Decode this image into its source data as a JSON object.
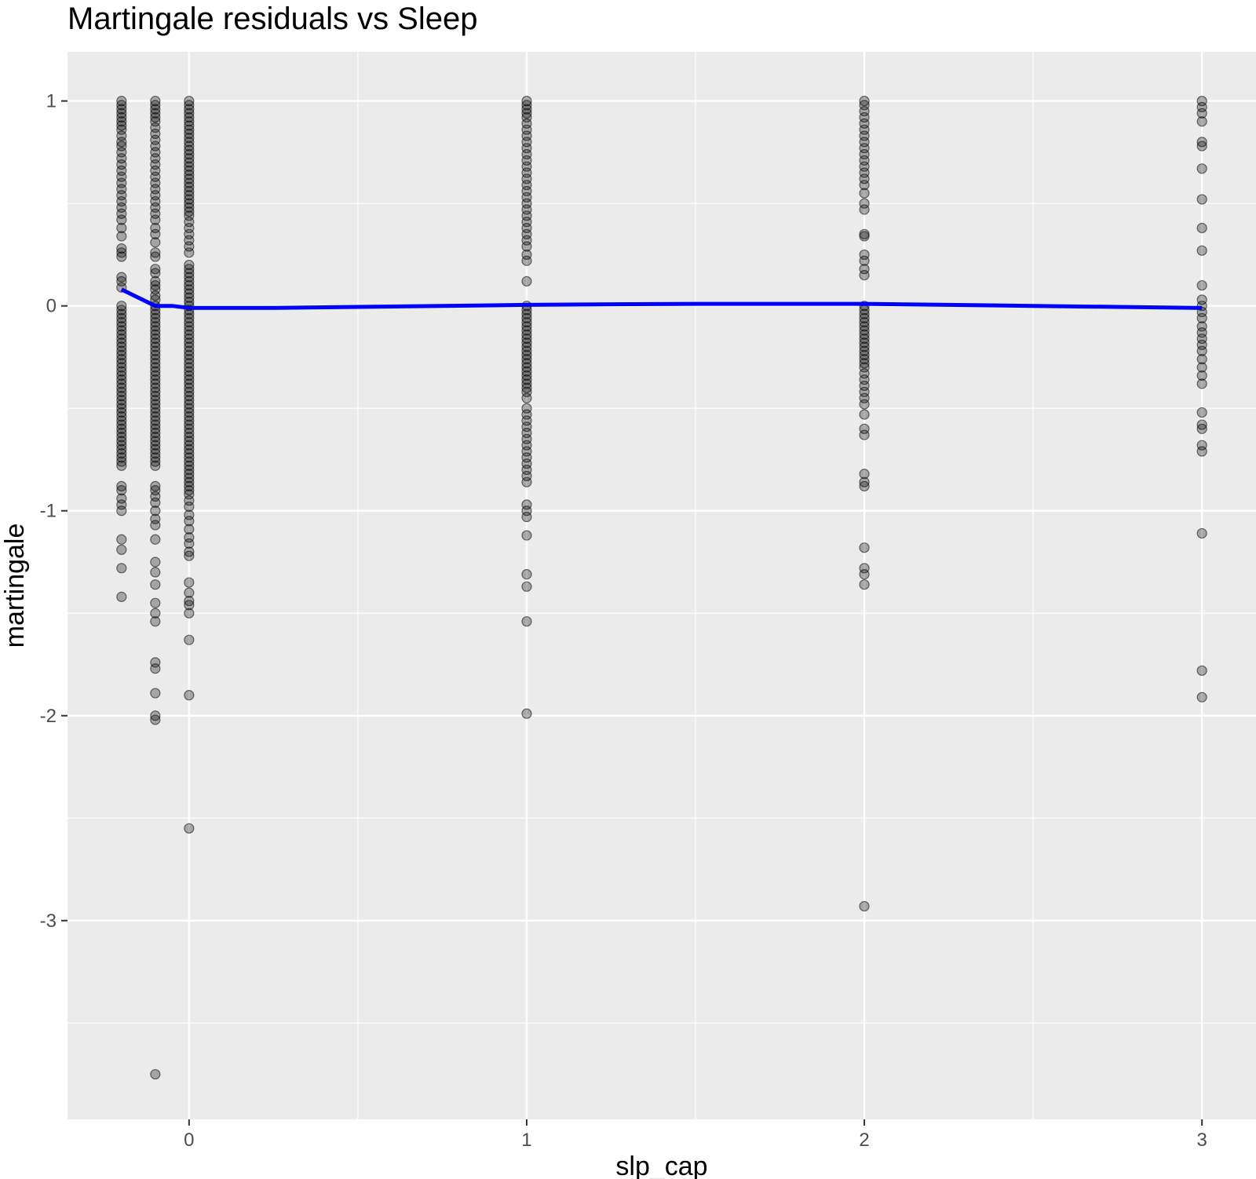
{
  "chart_data": {
    "type": "scatter",
    "title": "Martingale residuals vs Sleep",
    "xlabel": "slp_cap",
    "ylabel": "martingale",
    "xlim": [
      -0.36,
      3.16
    ],
    "ylim": [
      -3.97,
      1.24
    ],
    "xticks": [
      0,
      1,
      2,
      3
    ],
    "yticks": [
      -3,
      -2,
      -1,
      0,
      1
    ],
    "x_tick_labels": [
      "0",
      "1",
      "2",
      "3"
    ],
    "y_tick_labels": [
      "-3",
      "-2",
      "-1",
      "0",
      "1"
    ],
    "grid": true,
    "legend": "none",
    "point_color": "#000000",
    "point_opacity": 0.3,
    "line_color": "#0000ff",
    "panel_background": "#ebebeb",
    "series": [
      {
        "kind": "points",
        "groups": [
          {
            "x": -0.2,
            "y": [
              1.0,
              0.98,
              0.96,
              0.94,
              0.92,
              0.9,
              0.88,
              0.86,
              0.83,
              0.8,
              0.78,
              0.75,
              0.72,
              0.69,
              0.66,
              0.63,
              0.6,
              0.57,
              0.54,
              0.51,
              0.48,
              0.45,
              0.42,
              0.38,
              0.34,
              0.28,
              0.26,
              0.24,
              0.14,
              0.12,
              0.09,
              0.0,
              -0.02,
              -0.04,
              -0.06,
              -0.08,
              -0.1,
              -0.12,
              -0.14,
              -0.16,
              -0.18,
              -0.2,
              -0.22,
              -0.24,
              -0.26,
              -0.28,
              -0.3,
              -0.32,
              -0.34,
              -0.36,
              -0.38,
              -0.4,
              -0.42,
              -0.44,
              -0.46,
              -0.48,
              -0.5,
              -0.52,
              -0.54,
              -0.56,
              -0.58,
              -0.6,
              -0.62,
              -0.64,
              -0.66,
              -0.68,
              -0.7,
              -0.72,
              -0.74,
              -0.76,
              -0.78,
              -0.88,
              -0.9,
              -0.94,
              -0.97,
              -1.0,
              -1.14,
              -1.19,
              -1.28,
              -1.42
            ]
          },
          {
            "x": -0.1,
            "y": [
              1.0,
              0.98,
              0.96,
              0.94,
              0.92,
              0.9,
              0.87,
              0.84,
              0.81,
              0.78,
              0.75,
              0.72,
              0.69,
              0.66,
              0.63,
              0.6,
              0.57,
              0.54,
              0.51,
              0.48,
              0.45,
              0.42,
              0.38,
              0.35,
              0.31,
              0.26,
              0.24,
              0.18,
              0.16,
              0.12,
              0.1,
              0.08,
              0.05,
              0.03,
              0.0,
              -0.02,
              -0.04,
              -0.06,
              -0.08,
              -0.1,
              -0.12,
              -0.14,
              -0.16,
              -0.18,
              -0.2,
              -0.22,
              -0.24,
              -0.26,
              -0.28,
              -0.3,
              -0.32,
              -0.34,
              -0.36,
              -0.38,
              -0.4,
              -0.42,
              -0.44,
              -0.46,
              -0.48,
              -0.5,
              -0.52,
              -0.54,
              -0.56,
              -0.58,
              -0.6,
              -0.62,
              -0.64,
              -0.66,
              -0.68,
              -0.7,
              -0.72,
              -0.74,
              -0.76,
              -0.78,
              -0.88,
              -0.9,
              -0.93,
              -0.96,
              -1.0,
              -1.04,
              -1.07,
              -1.14,
              -1.25,
              -1.3,
              -1.36,
              -1.45,
              -1.5,
              -1.54,
              -1.74,
              -1.77,
              -1.89,
              -2.0,
              -2.02,
              -3.75
            ]
          },
          {
            "x": 0.0,
            "y": [
              1.0,
              0.98,
              0.96,
              0.94,
              0.92,
              0.9,
              0.88,
              0.86,
              0.84,
              0.82,
              0.8,
              0.78,
              0.76,
              0.74,
              0.72,
              0.7,
              0.68,
              0.66,
              0.64,
              0.62,
              0.6,
              0.58,
              0.56,
              0.54,
              0.52,
              0.5,
              0.48,
              0.46,
              0.44,
              0.41,
              0.38,
              0.35,
              0.32,
              0.29,
              0.26,
              0.2,
              0.18,
              0.16,
              0.14,
              0.12,
              0.1,
              0.08,
              0.06,
              0.04,
              0.02,
              0.0,
              -0.02,
              -0.04,
              -0.06,
              -0.08,
              -0.1,
              -0.12,
              -0.14,
              -0.16,
              -0.18,
              -0.2,
              -0.22,
              -0.24,
              -0.26,
              -0.28,
              -0.3,
              -0.32,
              -0.34,
              -0.36,
              -0.38,
              -0.4,
              -0.42,
              -0.44,
              -0.46,
              -0.48,
              -0.5,
              -0.52,
              -0.54,
              -0.56,
              -0.58,
              -0.6,
              -0.62,
              -0.64,
              -0.66,
              -0.68,
              -0.7,
              -0.72,
              -0.74,
              -0.76,
              -0.78,
              -0.8,
              -0.82,
              -0.84,
              -0.86,
              -0.88,
              -0.9,
              -0.92,
              -0.95,
              -0.98,
              -1.02,
              -1.05,
              -1.09,
              -1.13,
              -1.16,
              -1.2,
              -1.22,
              -1.35,
              -1.4,
              -1.44,
              -1.46,
              -1.5,
              -1.63,
              -1.9,
              -2.55
            ]
          },
          {
            "x": 1.0,
            "y": [
              1.0,
              0.98,
              0.96,
              0.94,
              0.92,
              0.89,
              0.86,
              0.83,
              0.8,
              0.77,
              0.74,
              0.71,
              0.68,
              0.65,
              0.62,
              0.59,
              0.56,
              0.53,
              0.5,
              0.47,
              0.44,
              0.41,
              0.38,
              0.35,
              0.32,
              0.29,
              0.25,
              0.22,
              0.12,
              0.0,
              -0.02,
              -0.04,
              -0.06,
              -0.08,
              -0.1,
              -0.12,
              -0.14,
              -0.16,
              -0.18,
              -0.2,
              -0.22,
              -0.24,
              -0.26,
              -0.28,
              -0.3,
              -0.32,
              -0.34,
              -0.36,
              -0.38,
              -0.4,
              -0.42,
              -0.45,
              -0.5,
              -0.53,
              -0.56,
              -0.59,
              -0.62,
              -0.65,
              -0.68,
              -0.71,
              -0.74,
              -0.77,
              -0.8,
              -0.83,
              -0.86,
              -0.97,
              -1.0,
              -1.03,
              -1.12,
              -1.31,
              -1.37,
              -1.54,
              -1.99
            ]
          },
          {
            "x": 2.0,
            "y": [
              1.0,
              0.98,
              0.95,
              0.92,
              0.89,
              0.86,
              0.83,
              0.8,
              0.77,
              0.74,
              0.71,
              0.68,
              0.65,
              0.62,
              0.59,
              0.55,
              0.5,
              0.47,
              0.35,
              0.34,
              0.25,
              0.22,
              0.18,
              0.15,
              0.0,
              -0.02,
              -0.04,
              -0.06,
              -0.08,
              -0.1,
              -0.12,
              -0.14,
              -0.16,
              -0.18,
              -0.2,
              -0.22,
              -0.24,
              -0.26,
              -0.28,
              -0.3,
              -0.33,
              -0.36,
              -0.39,
              -0.42,
              -0.45,
              -0.48,
              -0.53,
              -0.6,
              -0.63,
              -0.82,
              -0.86,
              -0.88,
              -1.18,
              -1.28,
              -1.31,
              -1.36,
              -2.93
            ]
          },
          {
            "x": 3.0,
            "y": [
              1.0,
              0.97,
              0.94,
              0.9,
              0.8,
              0.78,
              0.67,
              0.52,
              0.38,
              0.27,
              0.1,
              0.03,
              0.0,
              -0.03,
              -0.06,
              -0.1,
              -0.13,
              -0.16,
              -0.19,
              -0.22,
              -0.26,
              -0.3,
              -0.34,
              -0.38,
              -0.52,
              -0.58,
              -0.6,
              -0.68,
              -0.71,
              -1.11,
              -1.78,
              -1.91
            ]
          }
        ]
      },
      {
        "kind": "smooth",
        "x": [
          -0.2,
          -0.15,
          -0.1,
          -0.05,
          0.0,
          0.25,
          0.5,
          0.75,
          1.0,
          1.25,
          1.5,
          1.75,
          2.0,
          2.25,
          2.5,
          2.75,
          3.0
        ],
        "y": [
          0.08,
          0.04,
          0.0,
          0.0,
          -0.01,
          -0.01,
          -0.005,
          0.0,
          0.005,
          0.008,
          0.01,
          0.01,
          0.01,
          0.005,
          0.0,
          -0.005,
          -0.01
        ]
      }
    ]
  }
}
